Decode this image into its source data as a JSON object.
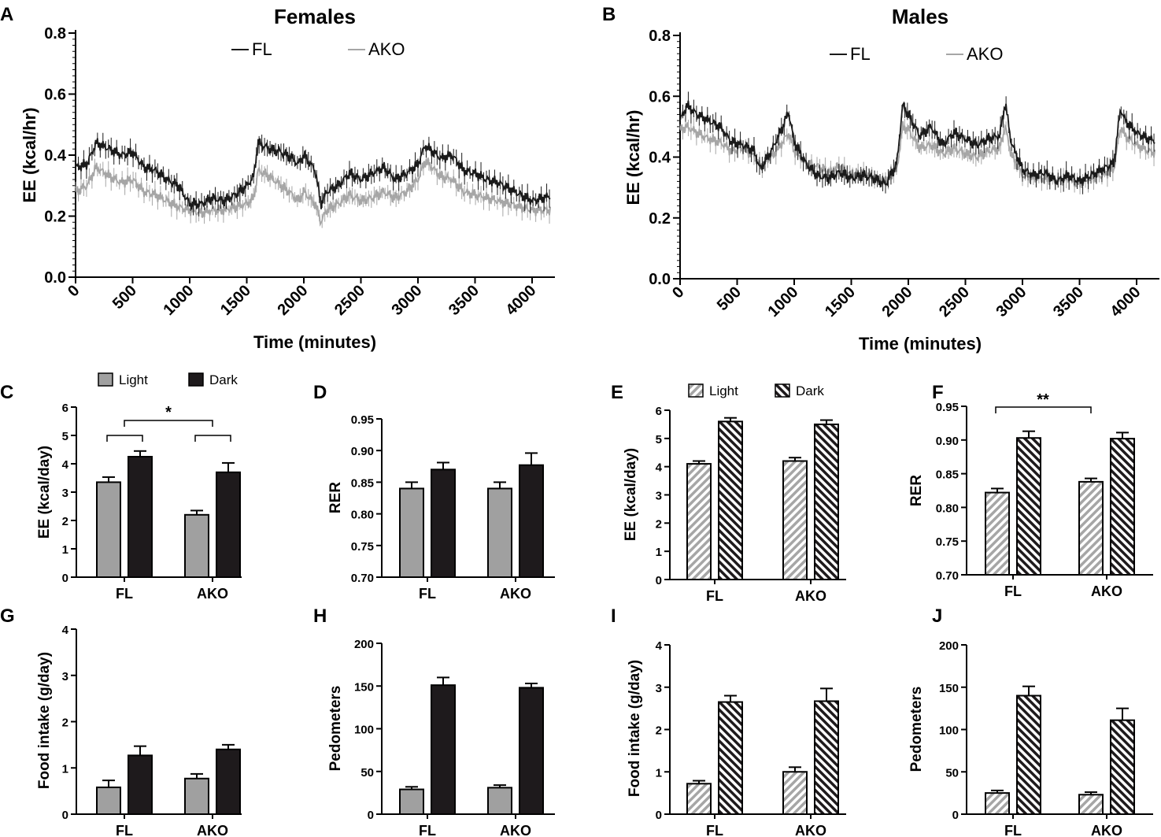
{
  "colors": {
    "fl_line": "#1a1a1a",
    "ako_line": "#a6a6a6",
    "light_bar": "#a0a0a0",
    "dark_bar": "#1e1a1c"
  },
  "chart_data": [
    {
      "id": "A",
      "type": "line",
      "letter": "A",
      "title": "Females",
      "xlabel": "Time (minutes)",
      "ylabel": "EE (kcal/hr)",
      "xlim": [
        0,
        4200
      ],
      "ylim": [
        0,
        0.8
      ],
      "xticks": [
        "0",
        "500",
        "1000",
        "1500",
        "2000",
        "2500",
        "3000",
        "3500",
        "4000"
      ],
      "yticks": [
        "0.0",
        "0.2",
        "0.4",
        "0.6",
        "0.8"
      ],
      "series": [
        {
          "name": "FL",
          "x": [
            0,
            100,
            180,
            300,
            400,
            500,
            600,
            700,
            800,
            900,
            1000,
            1100,
            1200,
            1300,
            1400,
            1500,
            1560,
            1600,
            1700,
            1800,
            1900,
            1950,
            2000,
            2100,
            2150,
            2200,
            2300,
            2400,
            2500,
            2600,
            2700,
            2800,
            2900,
            3000,
            3060,
            3100,
            3200,
            3300,
            3400,
            3500,
            3600,
            3700,
            3800,
            3900,
            4000,
            4100,
            4200
          ],
          "y": [
            0.36,
            0.37,
            0.44,
            0.42,
            0.4,
            0.41,
            0.36,
            0.35,
            0.32,
            0.3,
            0.24,
            0.24,
            0.26,
            0.25,
            0.27,
            0.3,
            0.33,
            0.44,
            0.42,
            0.41,
            0.39,
            0.37,
            0.4,
            0.35,
            0.24,
            0.28,
            0.3,
            0.34,
            0.32,
            0.34,
            0.36,
            0.32,
            0.34,
            0.37,
            0.43,
            0.42,
            0.39,
            0.4,
            0.35,
            0.34,
            0.32,
            0.31,
            0.29,
            0.27,
            0.25,
            0.26,
            0.27
          ]
        },
        {
          "name": "AKO",
          "x": [
            0,
            100,
            180,
            300,
            400,
            500,
            600,
            700,
            800,
            900,
            1000,
            1100,
            1200,
            1300,
            1400,
            1500,
            1560,
            1600,
            1700,
            1800,
            1900,
            1950,
            2000,
            2100,
            2150,
            2200,
            2300,
            2400,
            2500,
            2600,
            2700,
            2800,
            2900,
            3000,
            3060,
            3100,
            3200,
            3300,
            3400,
            3500,
            3600,
            3700,
            3800,
            3900,
            4000,
            4100,
            4200
          ],
          "y": [
            0.28,
            0.3,
            0.36,
            0.33,
            0.31,
            0.32,
            0.28,
            0.27,
            0.25,
            0.23,
            0.22,
            0.21,
            0.22,
            0.22,
            0.23,
            0.24,
            0.26,
            0.35,
            0.33,
            0.3,
            0.27,
            0.25,
            0.28,
            0.24,
            0.18,
            0.22,
            0.24,
            0.27,
            0.25,
            0.26,
            0.28,
            0.26,
            0.28,
            0.32,
            0.38,
            0.37,
            0.33,
            0.32,
            0.28,
            0.27,
            0.26,
            0.25,
            0.24,
            0.23,
            0.22,
            0.22,
            0.22
          ]
        }
      ]
    },
    {
      "id": "B",
      "type": "line",
      "letter": "B",
      "title": "Males",
      "xlabel": "Time (minutes)",
      "ylabel": "EE (kcal/hr)",
      "xlim": [
        0,
        4200
      ],
      "ylim": [
        0,
        0.8
      ],
      "xticks": [
        "0",
        "500",
        "1000",
        "1500",
        "2000",
        "2500",
        "3000",
        "3500",
        "4000"
      ],
      "yticks": [
        "0.0",
        "0.2",
        "0.4",
        "0.6",
        "0.8"
      ],
      "series": [
        {
          "name": "FL",
          "x": [
            0,
            60,
            150,
            250,
            350,
            450,
            550,
            650,
            700,
            800,
            900,
            950,
            1000,
            1100,
            1200,
            1300,
            1400,
            1500,
            1600,
            1700,
            1800,
            1900,
            1950,
            2000,
            2100,
            2200,
            2300,
            2400,
            2500,
            2600,
            2700,
            2800,
            2850,
            2900,
            3000,
            3100,
            3200,
            3300,
            3400,
            3500,
            3600,
            3700,
            3800,
            3860,
            3900,
            4000,
            4100,
            4200
          ],
          "y": [
            0.52,
            0.57,
            0.54,
            0.52,
            0.5,
            0.45,
            0.44,
            0.42,
            0.36,
            0.42,
            0.5,
            0.55,
            0.45,
            0.38,
            0.34,
            0.33,
            0.35,
            0.33,
            0.34,
            0.33,
            0.31,
            0.38,
            0.57,
            0.54,
            0.47,
            0.5,
            0.44,
            0.48,
            0.46,
            0.44,
            0.46,
            0.47,
            0.58,
            0.45,
            0.36,
            0.34,
            0.35,
            0.32,
            0.34,
            0.32,
            0.34,
            0.36,
            0.38,
            0.56,
            0.52,
            0.48,
            0.46,
            0.45
          ]
        },
        {
          "name": "AKO",
          "x": [
            0,
            60,
            150,
            250,
            350,
            450,
            550,
            650,
            700,
            800,
            900,
            950,
            1000,
            1100,
            1200,
            1300,
            1400,
            1500,
            1600,
            1700,
            1800,
            1900,
            1950,
            2000,
            2100,
            2200,
            2300,
            2400,
            2500,
            2600,
            2700,
            2800,
            2850,
            2900,
            3000,
            3100,
            3200,
            3300,
            3400,
            3500,
            3600,
            3700,
            3800,
            3860,
            3900,
            4000,
            4100,
            4200
          ],
          "y": [
            0.49,
            0.5,
            0.48,
            0.46,
            0.45,
            0.42,
            0.43,
            0.4,
            0.37,
            0.4,
            0.45,
            0.48,
            0.42,
            0.38,
            0.37,
            0.35,
            0.37,
            0.34,
            0.35,
            0.33,
            0.32,
            0.36,
            0.5,
            0.49,
            0.43,
            0.44,
            0.41,
            0.43,
            0.41,
            0.4,
            0.42,
            0.43,
            0.5,
            0.41,
            0.34,
            0.33,
            0.33,
            0.32,
            0.33,
            0.31,
            0.33,
            0.34,
            0.36,
            0.5,
            0.47,
            0.44,
            0.42,
            0.41
          ]
        }
      ]
    },
    {
      "id": "C",
      "type": "bar",
      "letter": "C",
      "style": "solid",
      "ylabel": "EE (kcal/day)",
      "categories": [
        "FL",
        "AKO"
      ],
      "ylim": [
        0,
        6
      ],
      "yticks": [
        "0",
        "1",
        "2",
        "3",
        "4",
        "5",
        "6"
      ],
      "legend": [
        "Light",
        "Dark"
      ],
      "series": [
        {
          "name": "Light",
          "values": [
            3.35,
            2.2
          ],
          "errors": [
            0.18,
            0.15
          ]
        },
        {
          "name": "Dark",
          "values": [
            4.25,
            3.7
          ],
          "errors": [
            0.2,
            0.33
          ]
        }
      ],
      "annotation": "*"
    },
    {
      "id": "D",
      "type": "bar",
      "letter": "D",
      "style": "solid",
      "ylabel": "RER",
      "categories": [
        "FL",
        "AKO"
      ],
      "ylim": [
        0.7,
        0.95
      ],
      "yticks": [
        "0.70",
        "0.75",
        "0.80",
        "0.85",
        "0.90",
        "0.95"
      ],
      "series": [
        {
          "name": "Light",
          "values": [
            0.84,
            0.84
          ],
          "errors": [
            0.01,
            0.01
          ]
        },
        {
          "name": "Dark",
          "values": [
            0.87,
            0.877
          ],
          "errors": [
            0.011,
            0.019
          ]
        }
      ]
    },
    {
      "id": "E",
      "type": "bar",
      "letter": "E",
      "style": "hatched",
      "ylabel": "EE (kcal/day)",
      "categories": [
        "FL",
        "AKO"
      ],
      "ylim": [
        0,
        6
      ],
      "yticks": [
        "0",
        "1",
        "2",
        "3",
        "4",
        "5",
        "6"
      ],
      "legend": [
        "Light",
        "Dark"
      ],
      "series": [
        {
          "name": "Light",
          "values": [
            4.1,
            4.2
          ],
          "errors": [
            0.1,
            0.12
          ]
        },
        {
          "name": "Dark",
          "values": [
            5.6,
            5.5
          ],
          "errors": [
            0.13,
            0.15
          ]
        }
      ]
    },
    {
      "id": "F",
      "type": "bar",
      "letter": "F",
      "style": "hatched",
      "ylabel": "RER",
      "categories": [
        "FL",
        "AKO"
      ],
      "ylim": [
        0.7,
        0.95
      ],
      "yticks": [
        "0.70",
        "0.75",
        "0.80",
        "0.85",
        "0.90",
        "0.95"
      ],
      "series": [
        {
          "name": "Light",
          "values": [
            0.822,
            0.838
          ],
          "errors": [
            0.006,
            0.005
          ]
        },
        {
          "name": "Dark",
          "values": [
            0.903,
            0.902
          ],
          "errors": [
            0.01,
            0.009
          ]
        }
      ],
      "annotation": "**"
    },
    {
      "id": "G",
      "type": "bar",
      "letter": "G",
      "style": "solid",
      "ylabel": "Food intake (g/day)",
      "categories": [
        "FL",
        "AKO"
      ],
      "ylim": [
        0,
        4
      ],
      "yticks": [
        "0",
        "1",
        "2",
        "3",
        "4"
      ],
      "series": [
        {
          "name": "Light",
          "values": [
            0.58,
            0.77
          ],
          "errors": [
            0.15,
            0.1
          ]
        },
        {
          "name": "Dark",
          "values": [
            1.27,
            1.4
          ],
          "errors": [
            0.2,
            0.1
          ]
        }
      ]
    },
    {
      "id": "H",
      "type": "bar",
      "letter": "H",
      "style": "solid",
      "ylabel": "Pedometers",
      "categories": [
        "FL",
        "AKO"
      ],
      "ylim": [
        0,
        200
      ],
      "yticks": [
        "0",
        "50",
        "100",
        "150",
        "200"
      ],
      "series": [
        {
          "name": "Light",
          "values": [
            29,
            31
          ],
          "errors": [
            3,
            3
          ]
        },
        {
          "name": "Dark",
          "values": [
            151,
            148
          ],
          "errors": [
            9,
            5
          ]
        }
      ]
    },
    {
      "id": "I",
      "type": "bar",
      "letter": "I",
      "style": "hatched",
      "ylabel": "Food intake (g/day)",
      "categories": [
        "FL",
        "AKO"
      ],
      "ylim": [
        0,
        4
      ],
      "yticks": [
        "0",
        "1",
        "2",
        "3",
        "4"
      ],
      "series": [
        {
          "name": "Light",
          "values": [
            0.72,
            1.0
          ],
          "errors": [
            0.07,
            0.11
          ]
        },
        {
          "name": "Dark",
          "values": [
            2.65,
            2.67
          ],
          "errors": [
            0.15,
            0.3
          ]
        }
      ]
    },
    {
      "id": "J",
      "type": "bar",
      "letter": "J",
      "style": "hatched",
      "ylabel": "Pedometers",
      "categories": [
        "FL",
        "AKO"
      ],
      "ylim": [
        0,
        200
      ],
      "yticks": [
        "0",
        "50",
        "100",
        "150",
        "200"
      ],
      "series": [
        {
          "name": "Light",
          "values": [
            25,
            23
          ],
          "errors": [
            3,
            3
          ]
        },
        {
          "name": "Dark",
          "values": [
            140,
            111
          ],
          "errors": [
            11,
            14
          ]
        }
      ]
    }
  ]
}
